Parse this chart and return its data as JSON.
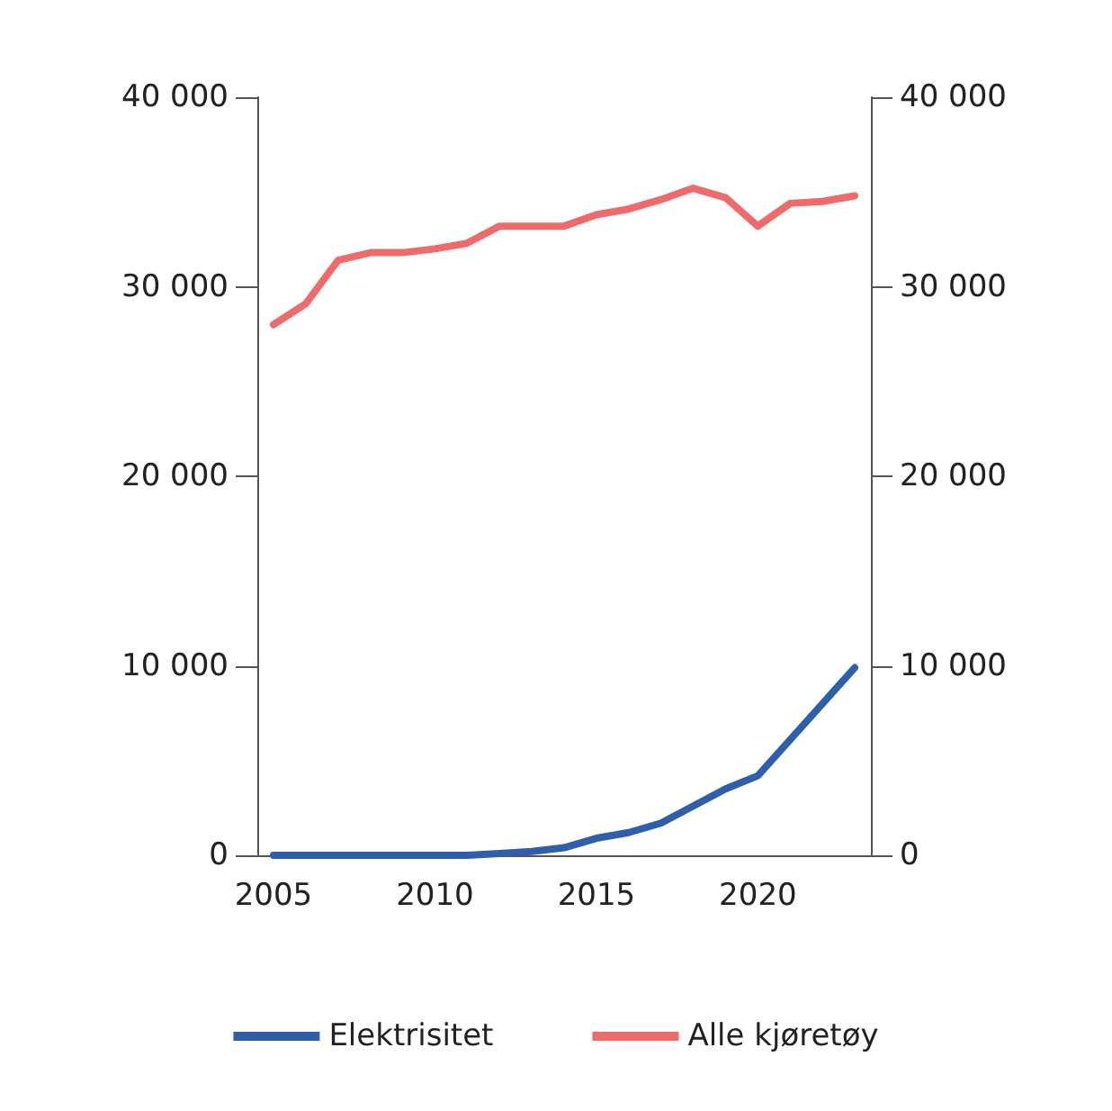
{
  "chart_data": {
    "type": "line",
    "x": [
      2005,
      2006,
      2007,
      2008,
      2009,
      2010,
      2011,
      2012,
      2013,
      2014,
      2015,
      2016,
      2017,
      2018,
      2019,
      2020,
      2021,
      2022,
      2023
    ],
    "series": [
      {
        "name": "Elektrisitet",
        "color": "#2f5fab",
        "values": [
          0,
          0,
          0,
          0,
          0,
          0,
          0,
          100,
          200,
          400,
          900,
          1200,
          1700,
          2600,
          3500,
          4200,
          6100,
          8000,
          9900
        ]
      },
      {
        "name": "Alle kjøretøy",
        "color": "#ee6a6b",
        "values": [
          28000,
          29100,
          31400,
          31800,
          31800,
          32000,
          32300,
          33200,
          33200,
          33200,
          33800,
          34100,
          34600,
          35200,
          34700,
          33200,
          34400,
          34500,
          34800
        ]
      }
    ],
    "xlim": [
      2004.5,
      2023.5
    ],
    "xticks": [
      2005,
      2010,
      2015,
      2020
    ],
    "ylim": [
      0,
      40000
    ],
    "yticks": [
      {
        "value": 0,
        "label": "0"
      },
      {
        "value": 10000,
        "label": "10 000"
      },
      {
        "value": 20000,
        "label": "20 000"
      },
      {
        "value": 30000,
        "label": "30 000"
      },
      {
        "value": 40000,
        "label": "40 000"
      }
    ],
    "y2lim": [
      0,
      40000
    ],
    "y2ticks": [
      {
        "value": 0,
        "label": "0"
      },
      {
        "value": 10000,
        "label": "10 000"
      },
      {
        "value": 20000,
        "label": "20 000"
      },
      {
        "value": 30000,
        "label": "30 000"
      },
      {
        "value": 40000,
        "label": "40 000"
      }
    ],
    "grid": false,
    "legend": "bottom",
    "marker": "none",
    "line_style": "solid"
  }
}
